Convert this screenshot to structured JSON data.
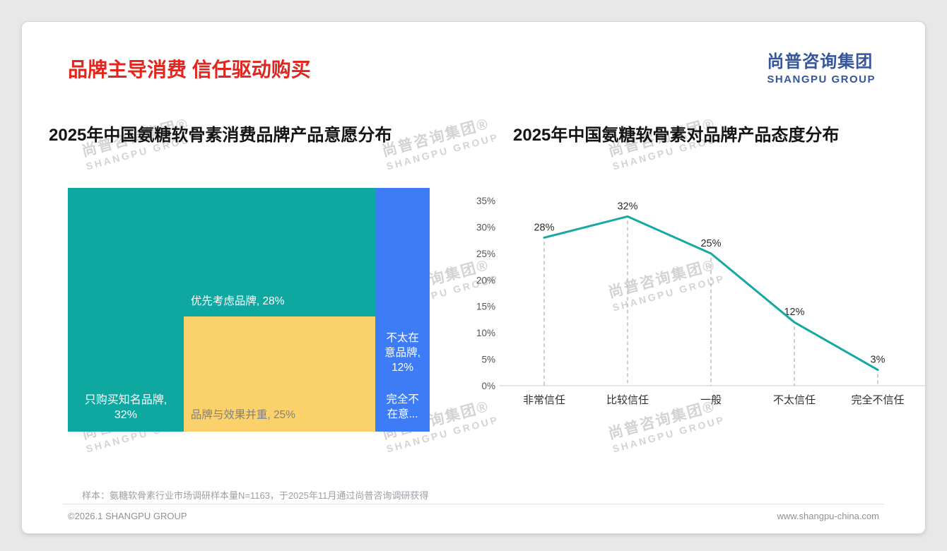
{
  "page": {
    "title": "品牌主导消费 信任驱动购买",
    "logo": {
      "cn": "尚普咨询集团",
      "en": "SHANGPU GROUP"
    },
    "watermark": {
      "cn": "尚普咨询集团®",
      "en": "SHANGPU GROUP"
    },
    "footnote": "样本：氨糖软骨素行业市场调研样本量N=1163，于2025年11月通过尚普咨询调研获得",
    "copyright": "©2026.1 SHANGPU GROUP",
    "website": "www.shangpu-china.com"
  },
  "chart_data": [
    {
      "type": "treemap",
      "title": "2025年中国氨糖软骨素消费品牌产品意愿分布",
      "segments": [
        {
          "label": "只购买知名品牌",
          "value": 32,
          "display_lines": [
            "只购买知名品牌,",
            "32%"
          ],
          "color": "#0EA8A0",
          "text_color": "#ffffff"
        },
        {
          "label": "优先考虑品牌",
          "value": 28,
          "display_lines": [
            "优先考虑品牌, 28%"
          ],
          "color": "#0EA8A0",
          "text_color": "#ffffff"
        },
        {
          "label": "品牌与效果并重",
          "value": 25,
          "display_lines": [
            "品牌与效果并重, 25%"
          ],
          "color": "#FBD16B",
          "text_color": "#818181"
        },
        {
          "label": "不太在意品牌",
          "value": 12,
          "display_lines": [
            "不太在",
            "意品牌,",
            "12%"
          ],
          "color": "#3E7CF7",
          "text_color": "#ffffff"
        },
        {
          "label": "完全不在意品牌",
          "value": 3,
          "display_lines": [
            "完全不",
            "在意..."
          ],
          "color": "#3E7CF7",
          "text_color": "#ffffff"
        }
      ]
    },
    {
      "type": "line",
      "title": "2025年中国氨糖软骨素对品牌产品态度分布",
      "categories": [
        "非常信任",
        "比较信任",
        "一般",
        "不太信任",
        "完全不信任"
      ],
      "values": [
        28,
        32,
        25,
        12,
        3
      ],
      "labels": [
        "28%",
        "32%",
        "25%",
        "12%",
        "3%"
      ],
      "ylim": [
        0,
        35
      ],
      "ytick_step": 5,
      "line_color": "#16A8A2",
      "grid": "dashed-vertical",
      "legend": "none"
    }
  ]
}
